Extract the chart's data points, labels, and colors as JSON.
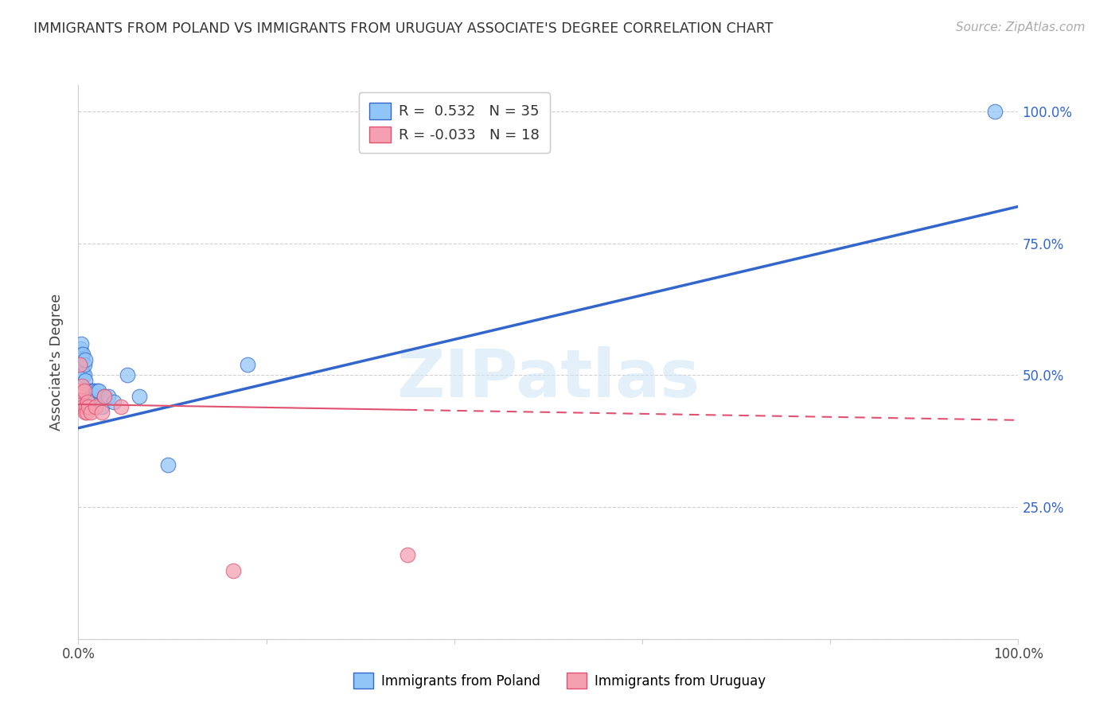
{
  "title": "IMMIGRANTS FROM POLAND VS IMMIGRANTS FROM URUGUAY ASSOCIATE'S DEGREE CORRELATION CHART",
  "source": "Source: ZipAtlas.com",
  "ylabel": "Associate's Degree",
  "watermark": "ZIPatlas",
  "legend_poland_r": "0.532",
  "legend_poland_n": "35",
  "legend_uruguay_r": "-0.033",
  "legend_uruguay_n": "18",
  "legend_label_poland": "Immigrants from Poland",
  "legend_label_uruguay": "Immigrants from Uruguay",
  "poland_color": "#92c5f7",
  "uruguay_color": "#f4a0b0",
  "poland_line_color": "#3366cc",
  "uruguay_line_color": "#e05070",
  "background_color": "#ffffff",
  "grid_color": "#d0d0d0",
  "poland_x": [
    0.001,
    0.002,
    0.002,
    0.003,
    0.003,
    0.003,
    0.004,
    0.004,
    0.005,
    0.005,
    0.006,
    0.006,
    0.007,
    0.007,
    0.008,
    0.009,
    0.01,
    0.011,
    0.012,
    0.013,
    0.015,
    0.016,
    0.017,
    0.018,
    0.02,
    0.022,
    0.025,
    0.028,
    0.032,
    0.038,
    0.052,
    0.065,
    0.095,
    0.18,
    0.975
  ],
  "poland_y": [
    0.54,
    0.53,
    0.55,
    0.52,
    0.54,
    0.56,
    0.51,
    0.53,
    0.5,
    0.54,
    0.5,
    0.52,
    0.49,
    0.53,
    0.46,
    0.46,
    0.47,
    0.46,
    0.47,
    0.46,
    0.46,
    0.47,
    0.47,
    0.46,
    0.47,
    0.47,
    0.44,
    0.46,
    0.46,
    0.45,
    0.5,
    0.46,
    0.33,
    0.52,
    1.0
  ],
  "uruguay_x": [
    0.001,
    0.002,
    0.003,
    0.004,
    0.005,
    0.006,
    0.007,
    0.008,
    0.009,
    0.01,
    0.011,
    0.013,
    0.018,
    0.025,
    0.028,
    0.045,
    0.165,
    0.35
  ],
  "uruguay_y": [
    0.52,
    0.46,
    0.47,
    0.48,
    0.44,
    0.47,
    0.43,
    0.44,
    0.43,
    0.45,
    0.44,
    0.43,
    0.44,
    0.43,
    0.46,
    0.44,
    0.13,
    0.16
  ],
  "xlim": [
    0.0,
    1.0
  ],
  "ylim": [
    0.0,
    1.05
  ],
  "poland_trendline_x0": 0.0,
  "poland_trendline_y0": 0.4,
  "poland_trendline_x1": 1.0,
  "poland_trendline_y1": 0.82,
  "uruguay_trendline_x0": 0.0,
  "uruguay_trendline_y0": 0.445,
  "uruguay_trendline_x1": 1.0,
  "uruguay_trendline_y1": 0.415
}
